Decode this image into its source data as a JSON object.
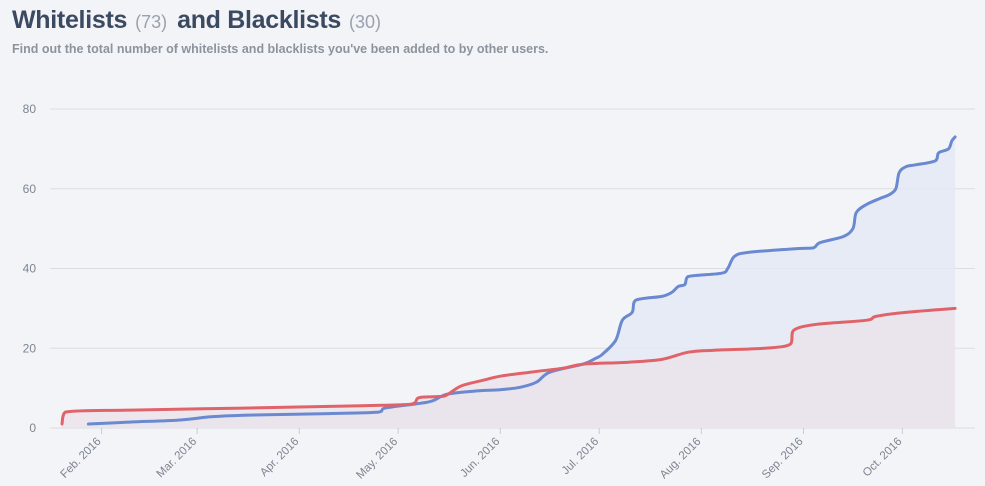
{
  "header": {
    "title_whitelists": "Whitelists",
    "count_whitelists": "(73)",
    "title_blacklists": "and Blacklists",
    "count_blacklists": "(30)",
    "subtitle": "Find out the total number of whitelists and blacklists you've been added to by other users."
  },
  "colors": {
    "whitelist_line": "#6a89d1",
    "whitelist_fill": "#e3e9f5",
    "blacklist_line": "#e0636a",
    "blacklist_fill": "#ebe3ea",
    "grid": "#dcdde2",
    "tick_text": "#7d8591"
  },
  "chart_data": {
    "type": "line",
    "title": "",
    "xlabel": "",
    "ylabel": "",
    "ylim": [
      0,
      80
    ],
    "yticks": [
      0,
      20,
      40,
      60,
      80
    ],
    "xlim": [
      "2016-01-20",
      "2016-10-20"
    ],
    "xticks": [
      {
        "date": "2016-02-01",
        "label": "Feb. 2016"
      },
      {
        "date": "2016-03-01",
        "label": "Mar. 2016"
      },
      {
        "date": "2016-04-01",
        "label": "Apr. 2016"
      },
      {
        "date": "2016-05-01",
        "label": "May. 2016"
      },
      {
        "date": "2016-06-01",
        "label": "Jun. 2016"
      },
      {
        "date": "2016-07-01",
        "label": "Jul. 2016"
      },
      {
        "date": "2016-08-01",
        "label": "Aug. 2016"
      },
      {
        "date": "2016-09-01",
        "label": "Sep. 2016"
      },
      {
        "date": "2016-10-01",
        "label": "Oct. 2016"
      }
    ],
    "grid": true,
    "legend": "none",
    "series": [
      {
        "key": "whitelists",
        "points": [
          [
            "2016-01-28",
            1
          ],
          [
            "2016-02-10",
            1.5
          ],
          [
            "2016-02-25",
            2
          ],
          [
            "2016-03-05",
            2.8
          ],
          [
            "2016-03-15",
            3.2
          ],
          [
            "2016-04-10",
            3.6
          ],
          [
            "2016-04-25",
            4
          ],
          [
            "2016-04-27",
            5
          ],
          [
            "2016-05-06",
            6
          ],
          [
            "2016-05-10",
            6.5
          ],
          [
            "2016-05-12",
            7
          ],
          [
            "2016-05-16",
            8.5
          ],
          [
            "2016-05-25",
            9.3
          ],
          [
            "2016-06-01",
            9.6
          ],
          [
            "2016-06-07",
            10.2
          ],
          [
            "2016-06-12",
            11.5
          ],
          [
            "2016-06-16",
            14
          ],
          [
            "2016-06-26",
            16
          ],
          [
            "2016-06-30",
            17.5
          ],
          [
            "2016-07-02",
            18.5
          ],
          [
            "2016-07-06",
            22
          ],
          [
            "2016-07-08",
            27
          ],
          [
            "2016-07-11",
            29
          ],
          [
            "2016-07-12",
            32
          ],
          [
            "2016-07-20",
            33
          ],
          [
            "2016-07-23",
            34
          ],
          [
            "2016-07-25",
            35.5
          ],
          [
            "2016-07-27",
            36
          ],
          [
            "2016-07-28",
            38
          ],
          [
            "2016-08-07",
            38.8
          ],
          [
            "2016-08-09",
            40
          ],
          [
            "2016-08-11",
            43
          ],
          [
            "2016-08-15",
            44
          ],
          [
            "2016-08-30",
            45
          ],
          [
            "2016-09-04",
            45.2
          ],
          [
            "2016-09-06",
            46.5
          ],
          [
            "2016-09-13",
            48
          ],
          [
            "2016-09-16",
            50
          ],
          [
            "2016-09-17",
            54
          ],
          [
            "2016-09-20",
            56
          ],
          [
            "2016-09-24",
            57.5
          ],
          [
            "2016-09-27",
            58.5
          ],
          [
            "2016-09-29",
            60
          ],
          [
            "2016-09-30",
            64
          ],
          [
            "2016-10-02",
            65.5
          ],
          [
            "2016-10-05",
            66
          ],
          [
            "2016-10-11",
            67
          ],
          [
            "2016-10-12",
            69
          ],
          [
            "2016-10-15",
            70
          ],
          [
            "2016-10-16",
            72
          ],
          [
            "2016-10-17",
            73
          ]
        ]
      },
      {
        "key": "blacklists",
        "points": [
          [
            "2016-01-20",
            1
          ],
          [
            "2016-01-21",
            4
          ],
          [
            "2016-02-10",
            4.5
          ],
          [
            "2016-03-15",
            5
          ],
          [
            "2016-04-20",
            5.6
          ],
          [
            "2016-05-05",
            6
          ],
          [
            "2016-05-07",
            7.5
          ],
          [
            "2016-05-10",
            7.8
          ],
          [
            "2016-05-15",
            8
          ],
          [
            "2016-05-20",
            10.5
          ],
          [
            "2016-05-27",
            12
          ],
          [
            "2016-06-01",
            13
          ],
          [
            "2016-06-10",
            14
          ],
          [
            "2016-06-20",
            15
          ],
          [
            "2016-06-26",
            16
          ],
          [
            "2016-07-10",
            16.5
          ],
          [
            "2016-07-20",
            17.2
          ],
          [
            "2016-07-28",
            19
          ],
          [
            "2016-08-05",
            19.5
          ],
          [
            "2016-08-20",
            20
          ],
          [
            "2016-08-28",
            21
          ],
          [
            "2016-08-29",
            24.5
          ],
          [
            "2016-09-05",
            26
          ],
          [
            "2016-09-20",
            27
          ],
          [
            "2016-09-23",
            28
          ],
          [
            "2016-10-02",
            29
          ],
          [
            "2016-10-17",
            30
          ]
        ]
      }
    ]
  }
}
